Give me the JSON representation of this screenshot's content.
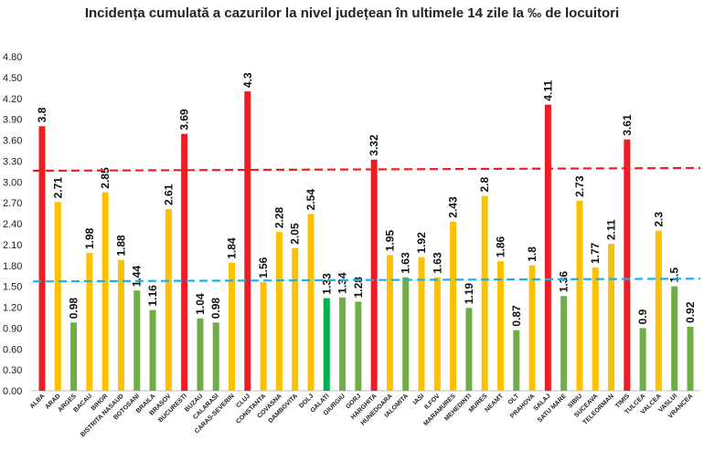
{
  "chart_data": {
    "type": "bar",
    "title": "Incidența cumulată a cazurilor la nivel județean în ultimele 14 zile la ‰ de locuitori",
    "xlabel": "",
    "ylabel": "",
    "ylim": [
      0,
      4.8
    ],
    "yticks": [
      "0.00",
      "0.30",
      "0.60",
      "0.90",
      "1.20",
      "1.50",
      "1.80",
      "2.10",
      "2.40",
      "2.70",
      "3.00",
      "3.30",
      "3.60",
      "3.90",
      "4.20",
      "4.50",
      "4.80"
    ],
    "grid": false,
    "legend": "none",
    "categories": [
      "ALBA",
      "ARAD",
      "ARGES",
      "BACAU",
      "BIHOR",
      "BISTRITA NASAUD",
      "BOTOSANI",
      "BRAILA",
      "BRASOV",
      "BUCURESTI",
      "BUZAU",
      "CALARASI",
      "CARAS-SEVERIN",
      "CLUJ",
      "CONSTANTA",
      "COVASNA",
      "DAMBOVITA",
      "DOLJ",
      "GALATI",
      "GIURGIU",
      "GORJ",
      "HARGHITA",
      "HUNEDOARA",
      "IALOMITA",
      "IASI",
      "ILFOV",
      "MARAMURES",
      "MEHEDINTI",
      "MURES",
      "NEAMT",
      "OLT",
      "PRAHOVA",
      "SALAJ",
      "SATU MARE",
      "SIBIU",
      "SUCEAVA",
      "TELEORMAN",
      "TIMIS",
      "TULCEA",
      "VALCEA",
      "VASLUI",
      "VRANCEA"
    ],
    "values": [
      3.8,
      2.71,
      0.98,
      1.98,
      2.85,
      1.88,
      1.44,
      1.16,
      2.61,
      3.69,
      1.04,
      0.98,
      1.84,
      4.3,
      1.56,
      2.28,
      2.05,
      2.54,
      1.33,
      1.34,
      1.28,
      3.32,
      1.95,
      1.63,
      1.92,
      1.63,
      2.43,
      1.19,
      2.8,
      1.86,
      0.87,
      1.8,
      4.11,
      1.36,
      2.73,
      1.77,
      2.11,
      3.61,
      0.9,
      2.3,
      1.5,
      0.92
    ],
    "value_labels": [
      "3.8",
      "2.71",
      "0.98",
      "1.98",
      "2.85",
      "1.88",
      "1.44",
      "1.16",
      "2.61",
      "3.69",
      "1.04",
      "0.98",
      "1.84",
      "4.3",
      "1.56",
      "2.28",
      "2.05",
      "2.54",
      "1.33",
      "1.34",
      "1.28",
      "3.32",
      "1.95",
      "1.63",
      "1.92",
      "1.63",
      "2.43",
      "1.19",
      "2.8",
      "1.86",
      "0.87",
      "1.8",
      "4.11",
      "1.36",
      "2.73",
      "1.77",
      "2.11",
      "3.61",
      "0.9",
      "2.3",
      "1.5",
      "0.92"
    ],
    "bar_colors": [
      "#ee1c24",
      "#ffc000",
      "#70ad47",
      "#ffc000",
      "#ffc000",
      "#ffc000",
      "#70ad47",
      "#70ad47",
      "#ffc000",
      "#ee1c24",
      "#70ad47",
      "#70ad47",
      "#ffc000",
      "#ee1c24",
      "#ffc000",
      "#ffc000",
      "#ffc000",
      "#ffc000",
      "#00b050",
      "#70ad47",
      "#70ad47",
      "#ee1c24",
      "#ffc000",
      "#70ad47",
      "#ffc000",
      "#ffc000",
      "#ffc000",
      "#70ad47",
      "#ffc000",
      "#ffc000",
      "#70ad47",
      "#ffc000",
      "#ee1c24",
      "#70ad47",
      "#ffc000",
      "#ffc000",
      "#ffc000",
      "#ee1c24",
      "#70ad47",
      "#ffc000",
      "#70ad47",
      "#70ad47"
    ],
    "thresholds": [
      {
        "value_start": 3.16,
        "value_end": 3.2,
        "color": "#ee1c24",
        "style": "dashed"
      },
      {
        "value_start": 1.57,
        "value_end": 1.61,
        "color": "#1eaee8",
        "style": "dashed"
      }
    ]
  }
}
